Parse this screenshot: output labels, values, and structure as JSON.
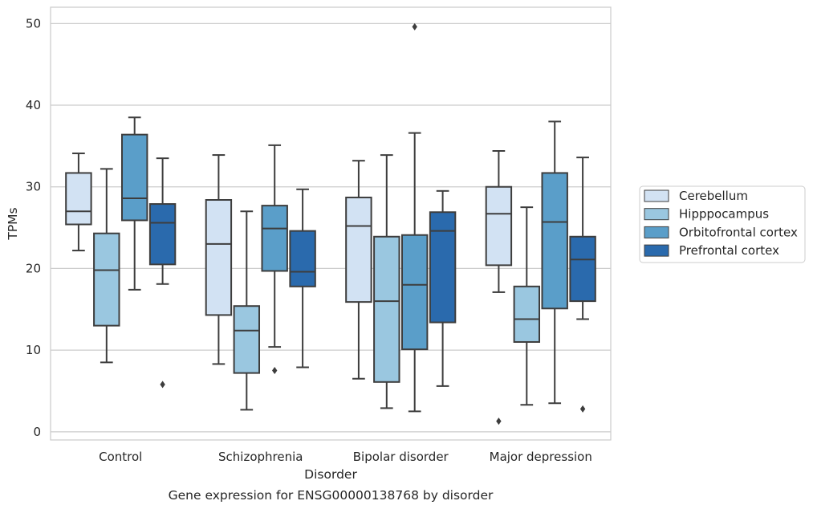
{
  "chart_data": {
    "type": "box",
    "caption": "Gene expression for ENSG00000138768 by disorder",
    "xlabel": "Disorder",
    "ylabel": "TPMs",
    "ylim": [
      -1,
      52
    ],
    "yticks": [
      0,
      10,
      20,
      30,
      40,
      50
    ],
    "grid": true,
    "legend_position": "right",
    "categories": [
      "Control",
      "Schizophrenia",
      "Bipolar disorder",
      "Major depression"
    ],
    "series": [
      {
        "name": "Cerebellum",
        "color": "#d2e2f3",
        "boxes": [
          {
            "whislo": 22.2,
            "q1": 25.4,
            "med": 27.0,
            "q3": 31.7,
            "whishi": 34.1,
            "fliers": []
          },
          {
            "whislo": 8.3,
            "q1": 14.3,
            "med": 23.0,
            "q3": 28.4,
            "whishi": 33.9,
            "fliers": []
          },
          {
            "whislo": 6.5,
            "q1": 15.9,
            "med": 25.2,
            "q3": 28.7,
            "whishi": 33.2,
            "fliers": []
          },
          {
            "whislo": 17.1,
            "q1": 20.4,
            "med": 26.7,
            "q3": 30.0,
            "whishi": 34.4,
            "fliers": [
              1.3
            ]
          }
        ]
      },
      {
        "name": "Hipppocampus",
        "color": "#9ac7e0",
        "boxes": [
          {
            "whislo": 8.5,
            "q1": 13.0,
            "med": 19.8,
            "q3": 24.3,
            "whishi": 32.2,
            "fliers": []
          },
          {
            "whislo": 2.7,
            "q1": 7.2,
            "med": 12.4,
            "q3": 15.4,
            "whishi": 27.0,
            "fliers": []
          },
          {
            "whislo": 2.9,
            "q1": 6.1,
            "med": 16.0,
            "q3": 23.9,
            "whishi": 33.9,
            "fliers": []
          },
          {
            "whislo": 3.3,
            "q1": 11.0,
            "med": 13.8,
            "q3": 17.8,
            "whishi": 27.5,
            "fliers": []
          }
        ]
      },
      {
        "name": "Orbitofrontal cortex",
        "color": "#5a9ec9",
        "boxes": [
          {
            "whislo": 17.4,
            "q1": 25.9,
            "med": 28.6,
            "q3": 36.4,
            "whishi": 38.5,
            "fliers": []
          },
          {
            "whislo": 10.4,
            "q1": 19.7,
            "med": 24.9,
            "q3": 27.7,
            "whishi": 35.1,
            "fliers": [
              7.5
            ]
          },
          {
            "whislo": 2.5,
            "q1": 10.1,
            "med": 18.0,
            "q3": 24.1,
            "whishi": 36.6,
            "fliers": [
              49.6
            ]
          },
          {
            "whislo": 3.5,
            "q1": 15.1,
            "med": 25.7,
            "q3": 31.7,
            "whishi": 38.0,
            "fliers": []
          }
        ]
      },
      {
        "name": "Prefrontal cortex",
        "color": "#2a6aad",
        "boxes": [
          {
            "whislo": 18.1,
            "q1": 20.5,
            "med": 25.6,
            "q3": 27.9,
            "whishi": 33.5,
            "fliers": [
              5.8
            ]
          },
          {
            "whislo": 7.9,
            "q1": 17.8,
            "med": 19.6,
            "q3": 24.6,
            "whishi": 29.7,
            "fliers": []
          },
          {
            "whislo": 5.6,
            "q1": 13.4,
            "med": 24.6,
            "q3": 26.9,
            "whishi": 29.5,
            "fliers": []
          },
          {
            "whislo": 13.8,
            "q1": 16.0,
            "med": 21.1,
            "q3": 23.9,
            "whishi": 33.6,
            "fliers": [
              2.8
            ]
          }
        ]
      }
    ]
  }
}
